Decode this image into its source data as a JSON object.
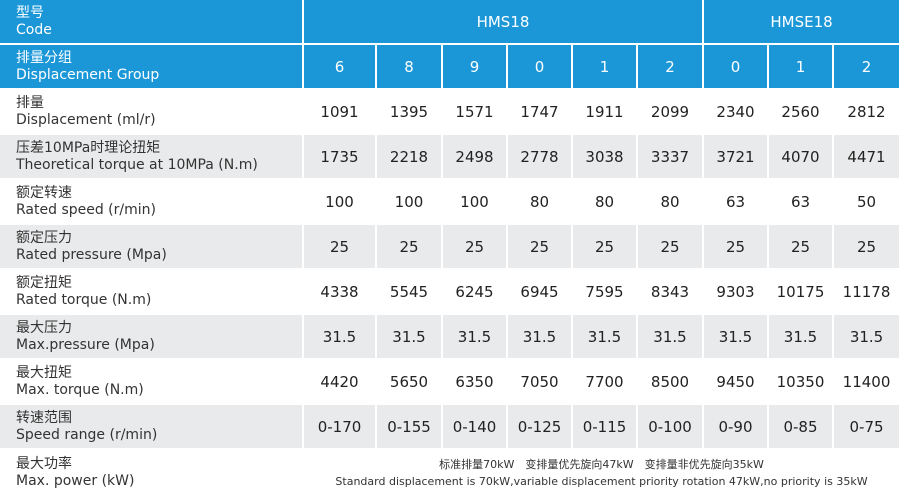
{
  "header": {
    "code_cn": "型号",
    "code_en": "Code",
    "group_cn": "排量分组",
    "group_en": "Displacement Group",
    "models": [
      "HMS18",
      "HMSE18"
    ],
    "groups": [
      "6",
      "8",
      "9",
      "0",
      "1",
      "2",
      "0",
      "1",
      "2"
    ]
  },
  "rows": [
    {
      "cn": "排量",
      "en": "Displacement (ml/r)",
      "values": [
        "1091",
        "1395",
        "1571",
        "1747",
        "1911",
        "2099",
        "2340",
        "2560",
        "2812"
      ]
    },
    {
      "cn": "压差10MPa时理论扭矩",
      "en": "Theoretical torque at 10MPa (N.m)",
      "values": [
        "1735",
        "2218",
        "2498",
        "2778",
        "3038",
        "3337",
        "3721",
        "4070",
        "4471"
      ]
    },
    {
      "cn": "额定转速",
      "en": "Rated speed (r/min)",
      "values": [
        "100",
        "100",
        "100",
        "80",
        "80",
        "80",
        "63",
        "63",
        "50"
      ]
    },
    {
      "cn": "额定压力",
      "en": "Rated pressure (Mpa)",
      "values": [
        "25",
        "25",
        "25",
        "25",
        "25",
        "25",
        "25",
        "25",
        "25"
      ]
    },
    {
      "cn": "额定扭矩",
      "en": "Rated torque (N.m)",
      "values": [
        "4338",
        "5545",
        "6245",
        "6945",
        "7595",
        "8343",
        "9303",
        "10175",
        "11178"
      ]
    },
    {
      "cn": "最大压力",
      "en": "Max.pressure (Mpa)",
      "values": [
        "31.5",
        "31.5",
        "31.5",
        "31.5",
        "31.5",
        "31.5",
        "31.5",
        "31.5",
        "31.5"
      ]
    },
    {
      "cn": "最大扭矩",
      "en": "Max. torque (N.m)",
      "values": [
        "4420",
        "5650",
        "6350",
        "7050",
        "7700",
        "8500",
        "9450",
        "10350",
        "11400"
      ]
    },
    {
      "cn": "转速范围",
      "en": "Speed range (r/min)",
      "values": [
        "0-170",
        "0-155",
        "0-140",
        "0-125",
        "0-115",
        "0-100",
        "0-90",
        "0-85",
        "0-75"
      ]
    }
  ],
  "power": {
    "cn": "最大功率",
    "en": "Max. power (kW)",
    "note_cn": "标准排量70kW　变排量优先旋向47kW　变排量非优先旋向35kW",
    "note_en": "Standard displacement is 70kW,variable displacement priority rotation 47kW,no priority is 35kW"
  },
  "colors": {
    "header_bg": "#1b97d8",
    "stripe_bg": "#e9eaeb",
    "text": "#222222"
  }
}
